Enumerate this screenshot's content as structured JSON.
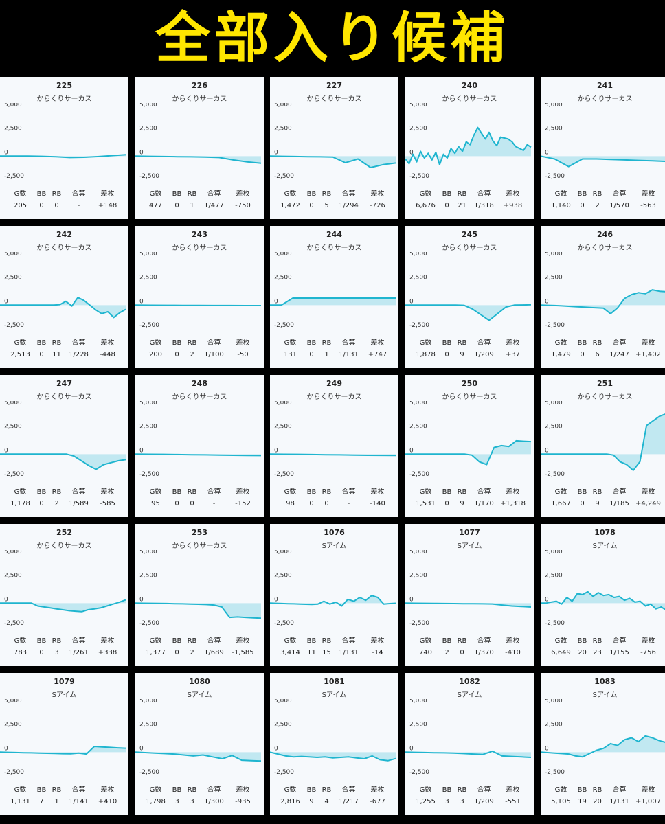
{
  "banner": {
    "title": "全部入り候補"
  },
  "colors": {
    "line": "#1fb5cf",
    "fill": "#9fdcea",
    "background": "#f6f9fc",
    "banner_text": "#ffe600"
  },
  "stat_headers": [
    "G数",
    "BB",
    "RB",
    "合算",
    "差枚"
  ],
  "y_ticks": [
    "5,000",
    "2,500",
    "0",
    "-2,500"
  ],
  "cards": [
    {
      "number": "225",
      "model": "からくりサーカス",
      "stats": [
        "205",
        "0",
        "0",
        "-",
        "+148"
      ]
    },
    {
      "number": "226",
      "model": "からくりサーカス",
      "stats": [
        "477",
        "0",
        "1",
        "1/477",
        "-750"
      ]
    },
    {
      "number": "227",
      "model": "からくりサーカス",
      "stats": [
        "1,472",
        "0",
        "5",
        "1/294",
        "-726"
      ]
    },
    {
      "number": "240",
      "model": "からくりサーカス",
      "stats": [
        "6,676",
        "0",
        "21",
        "1/318",
        "+938"
      ]
    },
    {
      "number": "241",
      "model": "からくりサーカス",
      "stats": [
        "1,140",
        "0",
        "2",
        "1/570",
        "-563"
      ]
    },
    {
      "number": "242",
      "model": "からくりサーカス",
      "stats": [
        "2,513",
        "0",
        "11",
        "1/228",
        "-448"
      ]
    },
    {
      "number": "243",
      "model": "からくりサーカス",
      "stats": [
        "200",
        "0",
        "2",
        "1/100",
        "-50"
      ]
    },
    {
      "number": "244",
      "model": "からくりサーカス",
      "stats": [
        "131",
        "0",
        "1",
        "1/131",
        "+747"
      ]
    },
    {
      "number": "245",
      "model": "からくりサーカス",
      "stats": [
        "1,878",
        "0",
        "9",
        "1/209",
        "+37"
      ]
    },
    {
      "number": "246",
      "model": "からくりサーカス",
      "stats": [
        "1,479",
        "0",
        "6",
        "1/247",
        "+1,402"
      ]
    },
    {
      "number": "247",
      "model": "からくりサーカス",
      "stats": [
        "1,178",
        "0",
        "2",
        "1/589",
        "-585"
      ]
    },
    {
      "number": "248",
      "model": "からくりサーカス",
      "stats": [
        "95",
        "0",
        "0",
        "-",
        "-152"
      ]
    },
    {
      "number": "249",
      "model": "からくりサーカス",
      "stats": [
        "98",
        "0",
        "0",
        "-",
        "-140"
      ]
    },
    {
      "number": "250",
      "model": "からくりサーカス",
      "stats": [
        "1,531",
        "0",
        "9",
        "1/170",
        "+1,318"
      ]
    },
    {
      "number": "251",
      "model": "からくりサーカス",
      "stats": [
        "1,667",
        "0",
        "9",
        "1/185",
        "+4,249"
      ]
    },
    {
      "number": "252",
      "model": "からくりサーカス",
      "stats": [
        "783",
        "0",
        "3",
        "1/261",
        "+338"
      ]
    },
    {
      "number": "253",
      "model": "からくりサーカス",
      "stats": [
        "1,377",
        "0",
        "2",
        "1/689",
        "-1,585"
      ]
    },
    {
      "number": "1076",
      "model": "Sアイム",
      "stats": [
        "3,414",
        "11",
        "15",
        "1/131",
        "-14"
      ]
    },
    {
      "number": "1077",
      "model": "Sアイム",
      "stats": [
        "740",
        "2",
        "0",
        "1/370",
        "-410"
      ]
    },
    {
      "number": "1078",
      "model": "Sアイム",
      "stats": [
        "6,649",
        "20",
        "23",
        "1/155",
        "-756"
      ]
    },
    {
      "number": "1079",
      "model": "Sアイム",
      "stats": [
        "1,131",
        "7",
        "1",
        "1/141",
        "+410"
      ]
    },
    {
      "number": "1080",
      "model": "Sアイム",
      "stats": [
        "1,798",
        "3",
        "3",
        "1/300",
        "-935"
      ]
    },
    {
      "number": "1081",
      "model": "Sアイム",
      "stats": [
        "2,816",
        "9",
        "4",
        "1/217",
        "-677"
      ]
    },
    {
      "number": "1082",
      "model": "Sアイム",
      "stats": [
        "1,255",
        "3",
        "3",
        "1/209",
        "-551"
      ]
    },
    {
      "number": "1083",
      "model": "Sアイム",
      "stats": [
        "5,105",
        "19",
        "20",
        "1/131",
        "+1,007"
      ]
    }
  ],
  "chart_data": [
    {
      "type": "area",
      "ylim": [
        -2500,
        5000
      ],
      "series": [
        {
          "values": [
            0,
            0,
            0,
            -20,
            -60,
            -150,
            -120,
            -50,
            50,
            148
          ]
        }
      ]
    },
    {
      "type": "area",
      "ylim": [
        -2500,
        5000
      ],
      "series": [
        {
          "values": [
            0,
            -20,
            -40,
            -60,
            -80,
            -100,
            -150,
            -400,
            -600,
            -750
          ]
        }
      ]
    },
    {
      "type": "area",
      "ylim": [
        -2500,
        5000
      ],
      "series": [
        {
          "values": [
            0,
            -20,
            -40,
            -60,
            -80,
            -100,
            -700,
            -300,
            -1200,
            -900,
            -726
          ]
        }
      ]
    },
    {
      "type": "area",
      "ylim": [
        -2500,
        5000
      ],
      "series": [
        {
          "values": [
            -300,
            -800,
            200,
            -600,
            500,
            -200,
            300,
            -400,
            400,
            -900,
            200,
            -200,
            800,
            300,
            1000,
            500,
            1500,
            1200,
            2200,
            3000,
            2400,
            1800,
            2500,
            1600,
            1100,
            2000,
            1900,
            1800,
            1500,
            1000,
            800,
            600,
            1200,
            938
          ]
        }
      ]
    },
    {
      "type": "area",
      "ylim": [
        -2500,
        5000
      ],
      "series": [
        {
          "values": [
            0,
            -300,
            -1100,
            -300,
            -300,
            -350,
            -400,
            -450,
            -500,
            -563
          ]
        }
      ]
    },
    {
      "type": "area",
      "ylim": [
        -2500,
        5000
      ],
      "series": [
        {
          "values": [
            0,
            0,
            0,
            0,
            0,
            0,
            0,
            0,
            0,
            0,
            50,
            400,
            -100,
            800,
            500,
            0,
            -500,
            -900,
            -700,
            -1300,
            -800,
            -448
          ]
        }
      ]
    },
    {
      "type": "area",
      "ylim": [
        -2500,
        5000
      ],
      "series": [
        {
          "values": [
            0,
            -10,
            -20,
            -30,
            -30,
            -40,
            -40,
            -45,
            -50
          ]
        }
      ]
    },
    {
      "type": "area",
      "ylim": [
        -2500,
        5000
      ],
      "series": [
        {
          "values": [
            0,
            0,
            747,
            747,
            747,
            747,
            747,
            747,
            747,
            747,
            747,
            747
          ]
        }
      ]
    },
    {
      "type": "area",
      "ylim": [
        -2500,
        5000
      ],
      "series": [
        {
          "values": [
            0,
            0,
            0,
            0,
            0,
            0,
            0,
            -20,
            -400,
            -1000,
            -1600,
            -900,
            -200,
            0,
            20,
            37
          ]
        }
      ]
    },
    {
      "type": "area",
      "ylim": [
        -2500,
        5000
      ],
      "series": [
        {
          "values": [
            0,
            -20,
            -40,
            -80,
            -120,
            -160,
            -200,
            -240,
            -280,
            -320,
            -900,
            -300,
            700,
            1100,
            1300,
            1200,
            1600,
            1450,
            1402
          ]
        }
      ]
    },
    {
      "type": "area",
      "ylim": [
        -2500,
        5000
      ],
      "series": [
        {
          "values": [
            0,
            0,
            0,
            0,
            0,
            0,
            0,
            0,
            0,
            0,
            -200,
            -700,
            -1200,
            -1600,
            -1100,
            -900,
            -700,
            -585
          ]
        }
      ]
    },
    {
      "type": "area",
      "ylim": [
        -2500,
        5000
      ],
      "series": [
        {
          "values": [
            0,
            -10,
            -20,
            -40,
            -60,
            -80,
            -100,
            -120,
            -140,
            -152
          ]
        }
      ]
    },
    {
      "type": "area",
      "ylim": [
        -2500,
        5000
      ],
      "series": [
        {
          "values": [
            0,
            -10,
            -20,
            -40,
            -60,
            -80,
            -100,
            -120,
            -130,
            -140
          ]
        }
      ]
    },
    {
      "type": "area",
      "ylim": [
        -2500,
        5000
      ],
      "series": [
        {
          "values": [
            0,
            0,
            0,
            0,
            0,
            0,
            0,
            0,
            0,
            -100,
            -800,
            -1100,
            700,
            900,
            800,
            1400,
            1350,
            1318
          ]
        }
      ]
    },
    {
      "type": "area",
      "ylim": [
        -2500,
        5000
      ],
      "series": [
        {
          "values": [
            0,
            0,
            0,
            0,
            0,
            0,
            0,
            0,
            0,
            0,
            0,
            -100,
            -800,
            -1100,
            -1700,
            -800,
            3000,
            3500,
            4000,
            4249
          ]
        }
      ]
    },
    {
      "type": "area",
      "ylim": [
        -2500,
        5000
      ],
      "series": [
        {
          "values": [
            0,
            0,
            0,
            0,
            0,
            0,
            -300,
            -400,
            -500,
            -600,
            -700,
            -800,
            -850,
            -900,
            -700,
            -600,
            -500,
            -300,
            -100,
            100,
            338
          ]
        }
      ]
    },
    {
      "type": "area",
      "ylim": [
        -2500,
        5000
      ],
      "series": [
        {
          "values": [
            0,
            -10,
            -20,
            -30,
            -40,
            -60,
            -80,
            -100,
            -120,
            -150,
            -200,
            -400,
            -1500,
            -1450,
            -1500,
            -1550,
            -1585
          ]
        }
      ]
    },
    {
      "type": "area",
      "ylim": [
        -2500,
        5000
      ],
      "series": [
        {
          "values": [
            0,
            -20,
            -40,
            -60,
            -80,
            -100,
            -120,
            -140,
            -100,
            200,
            -100,
            100,
            -300,
            400,
            200,
            600,
            300,
            800,
            600,
            -100,
            -50,
            -14
          ]
        }
      ]
    },
    {
      "type": "area",
      "ylim": [
        -2500,
        5000
      ],
      "series": [
        {
          "values": [
            0,
            -10,
            -20,
            -30,
            -40,
            -50,
            -60,
            -70,
            -80,
            -90,
            -200,
            -300,
            -350,
            -410
          ]
        }
      ]
    },
    {
      "type": "area",
      "ylim": [
        -2500,
        5000
      ],
      "series": [
        {
          "values": [
            0,
            0,
            100,
            200,
            -100,
            600,
            200,
            1000,
            900,
            1200,
            700,
            1100,
            800,
            900,
            600,
            700,
            300,
            500,
            100,
            200,
            -300,
            -100,
            -600,
            -400,
            -756
          ]
        }
      ]
    },
    {
      "type": "area",
      "ylim": [
        -2500,
        5000
      ],
      "series": [
        {
          "values": [
            0,
            -20,
            -40,
            -60,
            -80,
            -100,
            -120,
            -140,
            -160,
            -180,
            -100,
            -200,
            600,
            550,
            500,
            450,
            410
          ]
        }
      ]
    },
    {
      "type": "area",
      "ylim": [
        -2500,
        5000
      ],
      "series": [
        {
          "values": [
            0,
            -50,
            -100,
            -150,
            -200,
            -300,
            -400,
            -300,
            -500,
            -700,
            -350,
            -850,
            -900,
            -935
          ]
        }
      ]
    },
    {
      "type": "area",
      "ylim": [
        -2500,
        5000
      ],
      "series": [
        {
          "values": [
            0,
            -200,
            -400,
            -500,
            -450,
            -500,
            -550,
            -500,
            -600,
            -550,
            -500,
            -600,
            -700,
            -400,
            -800,
            -900,
            -677
          ]
        }
      ]
    },
    {
      "type": "area",
      "ylim": [
        -2500,
        5000
      ],
      "series": [
        {
          "values": [
            0,
            -20,
            -40,
            -60,
            -80,
            -100,
            -150,
            -200,
            -250,
            100,
            -400,
            -450,
            -500,
            -551
          ]
        }
      ]
    },
    {
      "type": "area",
      "ylim": [
        -2500,
        5000
      ],
      "series": [
        {
          "values": [
            0,
            -50,
            -100,
            -150,
            -200,
            -400,
            -500,
            -150,
            200,
            400,
            900,
            700,
            1300,
            1500,
            1100,
            1700,
            1500,
            1200,
            1007
          ]
        }
      ]
    }
  ]
}
